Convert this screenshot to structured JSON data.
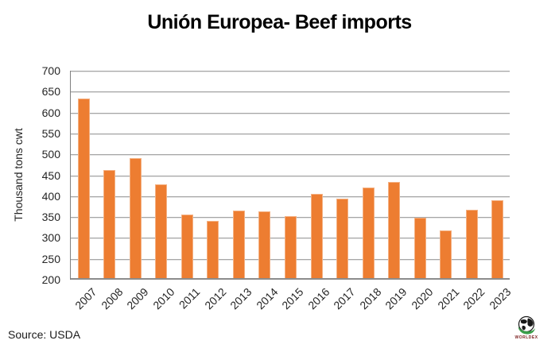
{
  "title": "Unión Europea- Beef imports",
  "source_note": "Source: USDA",
  "logo": {
    "text": "WORLDEX"
  },
  "colors": {
    "bar": "#ED7D31",
    "bar_edge": "#F4B183",
    "gridline": "#A6A6A6",
    "axis": "#808080",
    "text": "#262626",
    "title": "#000000"
  },
  "chart_data": {
    "type": "bar",
    "title": "Unión Europea- Beef imports",
    "xlabel": "",
    "ylabel": "Thousand tons cwt",
    "categories": [
      "2007",
      "2008",
      "2009",
      "2010",
      "2011",
      "2012",
      "2013",
      "2014",
      "2015",
      "2016",
      "2017",
      "2018",
      "2019",
      "2020",
      "2021",
      "2022",
      "2023"
    ],
    "values": [
      633,
      462,
      490,
      428,
      356,
      341,
      366,
      364,
      353,
      406,
      393,
      421,
      434,
      349,
      318,
      368,
      390
    ],
    "ylim": [
      200,
      700
    ],
    "ytick_step": 50,
    "grid": true,
    "legend": false,
    "bar_color": "#ED7D31",
    "source": "Source: USDA"
  }
}
